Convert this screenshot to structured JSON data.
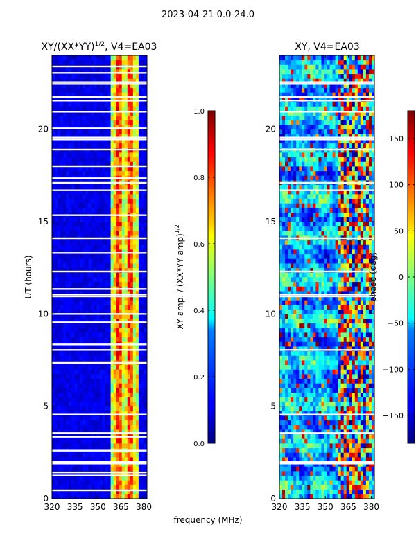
{
  "suptitle": "2023-04-21 0.0-24.0",
  "common_xlabel": "frequency (MHz)",
  "chart_data": [
    {
      "type": "heatmap",
      "title_main": "XY/(XX*YY)",
      "title_sup": "1/2",
      "title_rest": ", V4=EA03",
      "ylabel": "UT (hours)",
      "xlabel": "frequency (MHz)",
      "xlim": [
        320,
        382
      ],
      "ylim": [
        0,
        24
      ],
      "xticks": [
        320,
        335,
        350,
        365,
        380
      ],
      "yticks": [
        0,
        5,
        10,
        15,
        20
      ],
      "colorbar": {
        "label_main": "XY amp. / (XX*YY amp)",
        "label_sup": "1/2",
        "range": [
          0.0,
          1.0
        ],
        "ticks": [
          "0.0",
          "0.2",
          "0.4",
          "0.6",
          "0.8",
          "1.0"
        ],
        "colormap": "jet"
      },
      "flagged_hours": [
        0.45,
        1.25,
        1.42,
        1.9,
        1.98,
        2.6,
        3.35,
        3.55,
        4.55,
        7.35,
        8.05,
        8.35,
        9.55,
        10.0,
        10.95,
        11.05,
        11.35,
        12.3,
        13.3,
        14.1,
        15.35,
        16.7,
        17.1,
        17.35,
        18.0,
        18.9,
        19.45,
        19.55,
        20.05,
        20.95,
        21.55,
        21.75,
        22.45,
        22.55,
        23.05,
        23.4
      ],
      "features": [
        {
          "name": "low-coherence band",
          "freq_range_mhz": [
            320,
            359
          ],
          "value_range": [
            0.05,
            0.2
          ]
        },
        {
          "name": "high-coherence band",
          "freq_range_mhz": [
            359,
            377
          ],
          "value_range": [
            0.4,
            0.9
          ]
        }
      ]
    },
    {
      "type": "heatmap",
      "title": "XY, V4=EA03",
      "ylabel": "",
      "xlabel": "frequency (MHz)",
      "xlim": [
        320,
        382
      ],
      "ylim": [
        0,
        24
      ],
      "xticks": [
        320,
        335,
        350,
        365,
        380
      ],
      "yticks": [
        0,
        5,
        10,
        15,
        20
      ],
      "colorbar": {
        "label": "phase (deg)",
        "range": [
          -180,
          180
        ],
        "ticks": [
          "−150",
          "−100",
          "−50",
          "0",
          "50",
          "100",
          "150"
        ],
        "colormap": "jet"
      },
      "flagged_hours": [
        1.9,
        1.98,
        3.55,
        4.55,
        8.05,
        10.95,
        11.05,
        12.3,
        14.1,
        16.7,
        17.1,
        18.9,
        19.45,
        19.55,
        20.95,
        21.55,
        21.75,
        22.45,
        22.55
      ],
      "features": [
        {
          "name": "phase wrapping band",
          "freq_range_mhz": [
            358,
            380
          ],
          "value_range": [
            -180,
            180
          ]
        }
      ]
    }
  ]
}
